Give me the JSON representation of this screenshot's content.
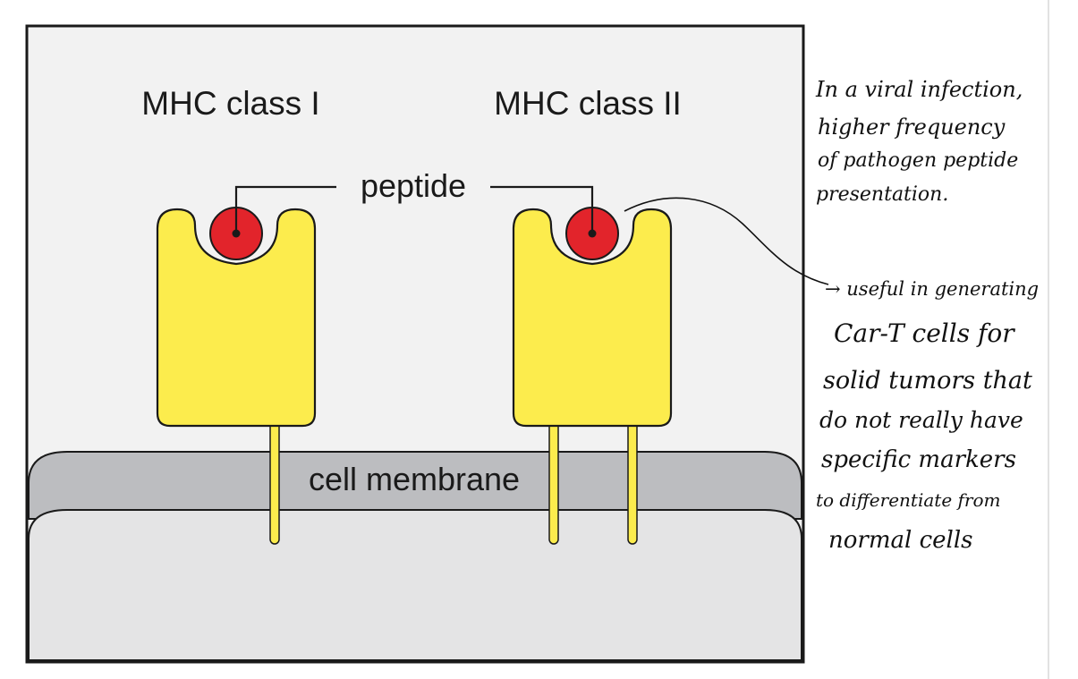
{
  "diagram": {
    "labels": {
      "mhc_class_1": "MHC class I",
      "mhc_class_2": "MHC class II",
      "peptide": "peptide",
      "cell_membrane": "cell membrane"
    },
    "colors": {
      "frame": "#1a1a1a",
      "background": "#f2f2f2",
      "membrane": "#bcbdc0",
      "cytoplasm": "#e4e4e5",
      "mhc_fill": "#fcec4d",
      "peptide_fill": "#e2242b"
    }
  },
  "annotations": {
    "note_top": [
      "In a viral infection,",
      "higher frequency",
      "of pathogen peptide",
      "presentation."
    ],
    "note_bottom": [
      "→ useful in generating",
      "Car-T cells for",
      "solid tumors that",
      "do not really have",
      "specific markers",
      "to differentiate from",
      "normal cells"
    ]
  }
}
